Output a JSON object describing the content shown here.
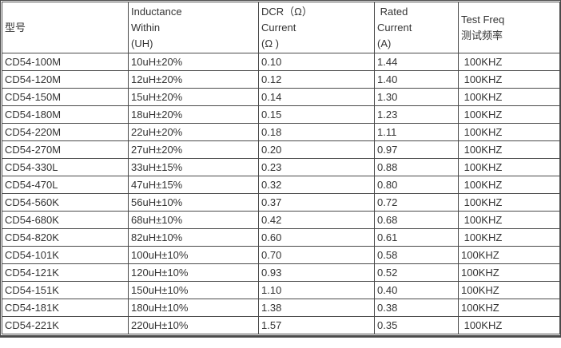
{
  "colors": {
    "border": "#4a4a4a",
    "text": "#333333",
    "background": "#ffffff"
  },
  "chart_data": {
    "type": "table",
    "columns": [
      {
        "id": "model",
        "lines": [
          "型号"
        ]
      },
      {
        "id": "inductance",
        "lines": [
          "Inductance",
          "Within",
          "(UH)"
        ]
      },
      {
        "id": "dcr",
        "lines": [
          "DCR（Ω）",
          "Current",
          "(Ω )"
        ]
      },
      {
        "id": "rated",
        "lines": [
          " Rated",
          "Current",
          "(A)"
        ]
      },
      {
        "id": "test-freq",
        "lines": [
          "Test Freq",
          "测试频率"
        ]
      }
    ],
    "rows": [
      [
        "CD54-100M",
        "10uH±20%",
        "0.10",
        "1.44",
        " 100KHZ"
      ],
      [
        "CD54-120M",
        "12uH±20%",
        "0.12",
        "1.40",
        " 100KHZ"
      ],
      [
        "CD54-150M",
        "15uH±20%",
        "0.14",
        "1.30",
        " 100KHZ"
      ],
      [
        "CD54-180M",
        "18uH±20%",
        "0.15",
        "1.23",
        " 100KHZ"
      ],
      [
        "CD54-220M",
        "22uH±20%",
        "0.18",
        "1.11",
        " 100KHZ"
      ],
      [
        "CD54-270M",
        "27uH±20%",
        "0.20",
        "0.97",
        " 100KHZ"
      ],
      [
        "CD54-330L",
        "33uH±15%",
        "0.23",
        "0.88",
        " 100KHZ"
      ],
      [
        "CD54-470L",
        "47uH±15%",
        "0.32",
        "0.80",
        " 100KHZ"
      ],
      [
        "CD54-560K",
        "56uH±10%",
        "0.37",
        "0.72",
        " 100KHZ"
      ],
      [
        "CD54-680K",
        "68uH±10%",
        "0.42",
        "0.68",
        " 100KHZ"
      ],
      [
        "CD54-820K",
        "82uH±10%",
        "0.60",
        "0.61",
        " 100KHZ"
      ],
      [
        "CD54-101K",
        "100uH±10%",
        "0.70",
        "0.58",
        "100KHZ"
      ],
      [
        "CD54-121K",
        "120uH±10%",
        "0.93",
        "0.52",
        "100KHZ"
      ],
      [
        "CD54-151K",
        "150uH±10%",
        "1.10",
        "0.40",
        "100KHZ"
      ],
      [
        "CD54-181K",
        "180uH±10%",
        "1.38",
        "0.38",
        "100KHZ"
      ],
      [
        "CD54-221K",
        "220uH±10%",
        "1.57",
        "0.35",
        " 100KHZ"
      ]
    ]
  }
}
